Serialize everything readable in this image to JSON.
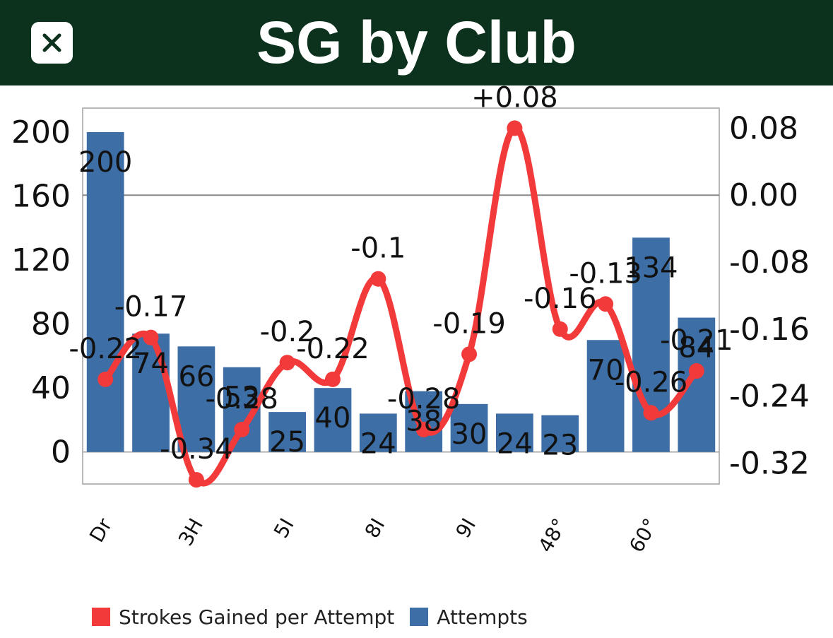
{
  "header": {
    "title": "SG by Club",
    "close_icon": "close-icon"
  },
  "colors": {
    "header_bg": "#0c311c",
    "line": "#f23a3a",
    "bar": "#3d6ea6"
  },
  "chart_data": {
    "type": "bar",
    "categories": [
      "Dr",
      "",
      "3H",
      "",
      "5I",
      "",
      "8I",
      "",
      "9I",
      "",
      "48°",
      "",
      "60°",
      ""
    ],
    "x_tick_labels": [
      "Dr",
      "3H",
      "5I",
      "8I",
      "9I",
      "48°",
      "60°"
    ],
    "series": [
      {
        "name": "Attempts",
        "type": "bar",
        "axis": "left",
        "values": [
          200,
          74,
          66,
          53,
          25,
          40,
          24,
          38,
          30,
          24,
          23,
          70,
          134,
          84
        ],
        "labels": [
          "200",
          "74",
          "66",
          "53",
          "25",
          "40",
          "24",
          "38",
          "30",
          "24",
          "23",
          "70",
          "134",
          "84"
        ]
      },
      {
        "name": "Strokes Gained per Attempt",
        "type": "line",
        "axis": "right",
        "values": [
          -0.22,
          -0.17,
          -0.34,
          -0.28,
          -0.2,
          -0.22,
          -0.1,
          -0.28,
          -0.19,
          0.08,
          -0.16,
          -0.13,
          -0.26,
          -0.21
        ],
        "labels": [
          "-0.22",
          "-0.17",
          "-0.34",
          "-0.28",
          "-0.2",
          "-0.22",
          "-0.1",
          "-0.28",
          "-0.19",
          "+0.08",
          "-0.16",
          "-0.13",
          "-0.26",
          "-0.21"
        ]
      }
    ],
    "y_left": {
      "ticks": [
        "0",
        "40",
        "80",
        "120",
        "160",
        "200"
      ],
      "range": [
        -20,
        215
      ]
    },
    "y_right": {
      "ticks": [
        "-0.32",
        "-0.24",
        "-0.16",
        "-0.08",
        "0.00",
        "0.08"
      ],
      "range": [
        -0.345,
        0.104
      ]
    },
    "reference_line": 0.0,
    "legend": [
      "Strokes Gained per Attempt",
      "Attempts"
    ],
    "legend_position": "bottom-left"
  }
}
